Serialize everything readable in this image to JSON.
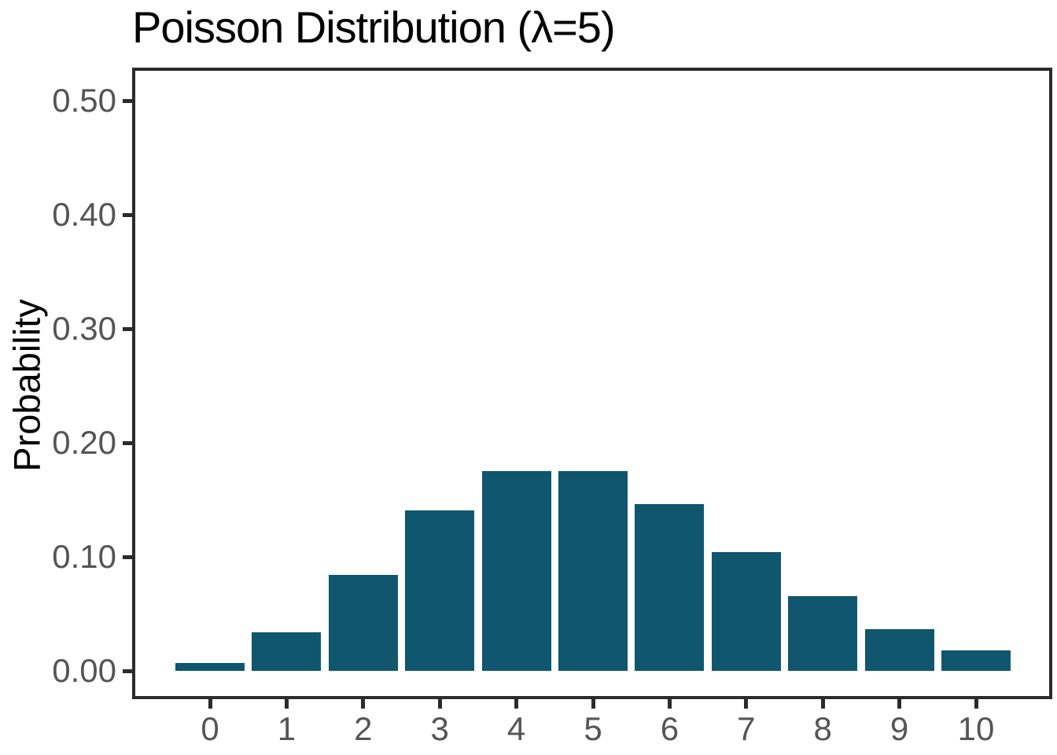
{
  "title": "Poisson Distribution (λ=5)",
  "chart_data": {
    "type": "bar",
    "title": "Poisson Distribution (λ=5)",
    "xlabel": "",
    "ylabel": "Probability",
    "categories": [
      "0",
      "1",
      "2",
      "3",
      "4",
      "5",
      "6",
      "7",
      "8",
      "9",
      "10"
    ],
    "values": [
      0.0067,
      0.0337,
      0.0842,
      0.1404,
      0.1755,
      0.1755,
      0.1462,
      0.1044,
      0.0653,
      0.0363,
      0.0181
    ],
    "ylim": [
      0,
      0.52
    ],
    "yticks": [
      0.0,
      0.1,
      0.2,
      0.3,
      0.4,
      0.5
    ],
    "ytick_labels": [
      "0.00",
      "0.10",
      "0.20",
      "0.30",
      "0.40",
      "0.50"
    ],
    "grid": false,
    "legend": false,
    "bar_color": "#0f566e",
    "axis_color": "#2b2b2b",
    "tick_label_color": "#555555",
    "title_color": "#000000",
    "background_color": "#ffffff"
  }
}
